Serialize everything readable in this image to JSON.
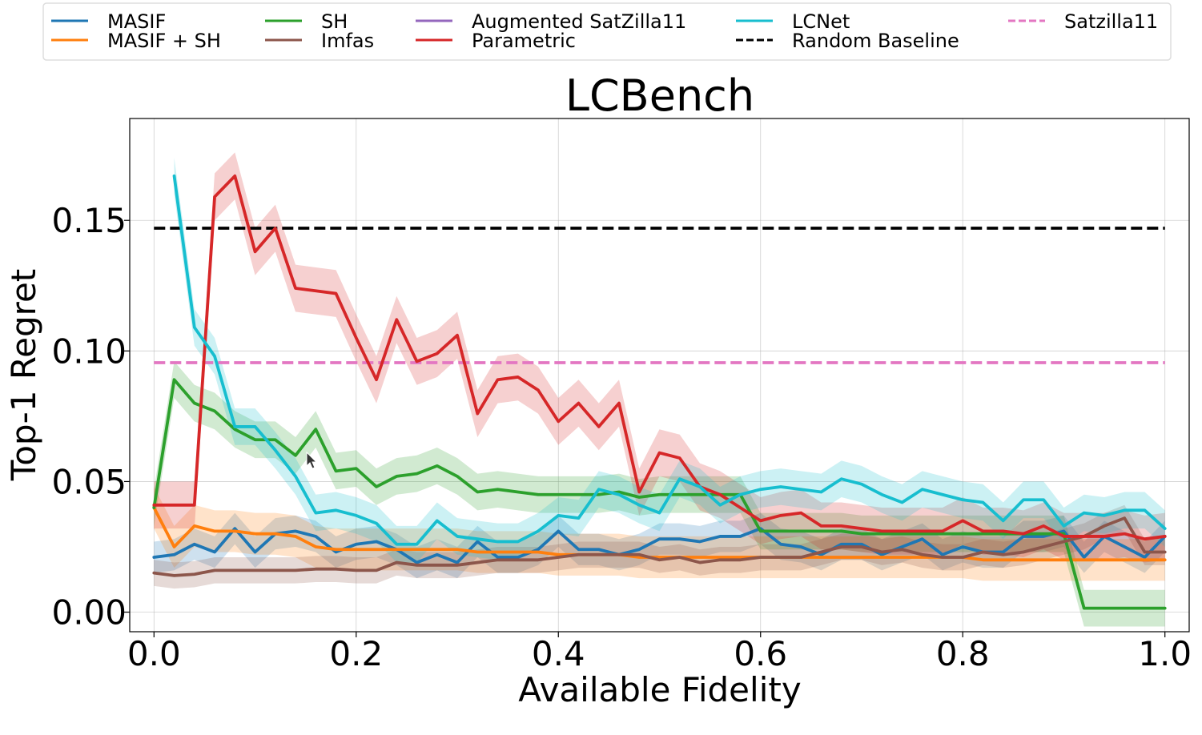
{
  "chart_data": {
    "type": "line",
    "title": "LCBench",
    "xlabel": "Available Fidelity",
    "ylabel": "Top-1 Regret",
    "xlim": [
      -0.024,
      1.024
    ],
    "ylim": [
      -0.0075,
      0.189
    ],
    "xticks": [
      0.0,
      0.2,
      0.4,
      0.6,
      0.8,
      1.0
    ],
    "xtick_labels": [
      "0.0",
      "0.2",
      "0.4",
      "0.6",
      "0.8",
      "1.0"
    ],
    "yticks": [
      0.0,
      0.05,
      0.1,
      0.15
    ],
    "ytick_labels": [
      "0.00",
      "0.05",
      "0.10",
      "0.15"
    ],
    "grid": true,
    "legend_position": "top",
    "series": [
      {
        "name": "MASIF",
        "color": "#1f77b4",
        "style": "solid",
        "band": 0.006,
        "x": [
          0.0,
          0.02,
          0.04,
          0.06,
          0.08,
          0.1,
          0.12,
          0.14,
          0.16,
          0.18,
          0.2,
          0.22,
          0.24,
          0.26,
          0.28,
          0.3,
          0.32,
          0.34,
          0.36,
          0.38,
          0.4,
          0.42,
          0.44,
          0.46,
          0.48,
          0.5,
          0.52,
          0.54,
          0.56,
          0.58,
          0.6,
          0.62,
          0.64,
          0.66,
          0.68,
          0.7,
          0.72,
          0.74,
          0.76,
          0.78,
          0.8,
          0.82,
          0.84,
          0.86,
          0.88,
          0.9,
          0.92,
          0.94,
          0.96,
          0.98,
          1.0
        ],
        "values": [
          0.021,
          0.022,
          0.026,
          0.023,
          0.032,
          0.023,
          0.03,
          0.031,
          0.029,
          0.023,
          0.026,
          0.027,
          0.024,
          0.019,
          0.022,
          0.019,
          0.027,
          0.021,
          0.021,
          0.024,
          0.031,
          0.024,
          0.024,
          0.022,
          0.024,
          0.028,
          0.028,
          0.027,
          0.029,
          0.029,
          0.032,
          0.026,
          0.025,
          0.022,
          0.026,
          0.026,
          0.022,
          0.025,
          0.028,
          0.022,
          0.025,
          0.023,
          0.023,
          0.029,
          0.029,
          0.031,
          0.021,
          0.029,
          0.025,
          0.021,
          0.029
        ]
      },
      {
        "name": "MASIF + SH",
        "color": "#ff7f0e",
        "style": "solid",
        "band": 0.008,
        "x": [
          0.0,
          0.02,
          0.04,
          0.06,
          0.08,
          0.1,
          0.12,
          0.14,
          0.16,
          0.18,
          0.2,
          0.22,
          0.24,
          0.26,
          0.28,
          0.3,
          0.32,
          0.34,
          0.36,
          0.38,
          0.4,
          0.42,
          0.44,
          0.46,
          0.48,
          0.5,
          0.52,
          0.54,
          0.56,
          0.58,
          0.6,
          0.62,
          0.64,
          0.66,
          0.68,
          0.7,
          0.72,
          0.74,
          0.76,
          0.78,
          0.8,
          0.82,
          0.84,
          0.86,
          0.88,
          0.9,
          0.92,
          0.94,
          0.96,
          0.98,
          1.0
        ],
        "values": [
          0.04,
          0.025,
          0.033,
          0.031,
          0.031,
          0.03,
          0.03,
          0.029,
          0.025,
          0.024,
          0.024,
          0.024,
          0.024,
          0.024,
          0.024,
          0.024,
          0.023,
          0.023,
          0.023,
          0.023,
          0.022,
          0.022,
          0.022,
          0.022,
          0.021,
          0.021,
          0.021,
          0.021,
          0.021,
          0.021,
          0.021,
          0.021,
          0.021,
          0.021,
          0.021,
          0.021,
          0.021,
          0.021,
          0.021,
          0.021,
          0.021,
          0.02,
          0.02,
          0.02,
          0.02,
          0.02,
          0.02,
          0.02,
          0.02,
          0.02,
          0.02
        ]
      },
      {
        "name": "SH",
        "color": "#2ca02c",
        "style": "solid",
        "band": 0.007,
        "x": [
          0.0,
          0.02,
          0.04,
          0.06,
          0.08,
          0.1,
          0.12,
          0.14,
          0.16,
          0.18,
          0.2,
          0.22,
          0.24,
          0.26,
          0.28,
          0.3,
          0.32,
          0.34,
          0.36,
          0.38,
          0.4,
          0.42,
          0.44,
          0.46,
          0.48,
          0.5,
          0.52,
          0.54,
          0.56,
          0.58,
          0.6,
          0.62,
          0.64,
          0.66,
          0.68,
          0.7,
          0.72,
          0.74,
          0.76,
          0.78,
          0.8,
          0.82,
          0.84,
          0.86,
          0.88,
          0.9,
          0.92,
          0.94,
          0.96,
          0.98,
          1.0
        ],
        "values": [
          0.04,
          0.089,
          0.08,
          0.077,
          0.07,
          0.066,
          0.066,
          0.06,
          0.07,
          0.054,
          0.055,
          0.048,
          0.052,
          0.053,
          0.056,
          0.052,
          0.046,
          0.047,
          0.046,
          0.045,
          0.045,
          0.045,
          0.045,
          0.046,
          0.044,
          0.045,
          0.045,
          0.045,
          0.045,
          0.045,
          0.031,
          0.031,
          0.031,
          0.031,
          0.031,
          0.03,
          0.03,
          0.03,
          0.03,
          0.03,
          0.03,
          0.03,
          0.03,
          0.03,
          0.03,
          0.03,
          0.0015,
          0.0015,
          0.0015,
          0.0015,
          0.0015
        ]
      },
      {
        "name": "Imfas",
        "color": "#8c564b",
        "style": "solid",
        "band": 0.005,
        "x": [
          0.0,
          0.02,
          0.04,
          0.06,
          0.08,
          0.1,
          0.12,
          0.14,
          0.16,
          0.18,
          0.2,
          0.22,
          0.24,
          0.26,
          0.28,
          0.3,
          0.32,
          0.34,
          0.36,
          0.38,
          0.4,
          0.42,
          0.44,
          0.46,
          0.48,
          0.5,
          0.52,
          0.54,
          0.56,
          0.58,
          0.6,
          0.62,
          0.64,
          0.66,
          0.68,
          0.7,
          0.72,
          0.74,
          0.76,
          0.78,
          0.8,
          0.82,
          0.84,
          0.86,
          0.88,
          0.9,
          0.92,
          0.94,
          0.96,
          0.98,
          1.0
        ],
        "values": [
          0.015,
          0.014,
          0.0145,
          0.016,
          0.016,
          0.016,
          0.016,
          0.016,
          0.0165,
          0.0165,
          0.016,
          0.016,
          0.019,
          0.018,
          0.018,
          0.018,
          0.019,
          0.02,
          0.02,
          0.02,
          0.021,
          0.022,
          0.022,
          0.022,
          0.022,
          0.02,
          0.021,
          0.019,
          0.02,
          0.02,
          0.021,
          0.021,
          0.021,
          0.023,
          0.025,
          0.025,
          0.023,
          0.024,
          0.022,
          0.021,
          0.021,
          0.023,
          0.022,
          0.023,
          0.025,
          0.027,
          0.029,
          0.033,
          0.036,
          0.023,
          0.023
        ]
      },
      {
        "name": "Augmented SatZilla11",
        "color": "#9467bd",
        "style": "solid",
        "band": 0,
        "x": [],
        "values": []
      },
      {
        "name": "Parametric",
        "color": "#d62728",
        "style": "solid",
        "band": 0.009,
        "x": [
          0.0,
          0.02,
          0.04,
          0.06,
          0.08,
          0.1,
          0.12,
          0.14,
          0.16,
          0.18,
          0.2,
          0.22,
          0.24,
          0.26,
          0.28,
          0.3,
          0.32,
          0.34,
          0.36,
          0.38,
          0.4,
          0.42,
          0.44,
          0.46,
          0.48,
          0.5,
          0.52,
          0.54,
          0.56,
          0.58,
          0.6,
          0.62,
          0.64,
          0.66,
          0.68,
          0.7,
          0.72,
          0.74,
          0.76,
          0.78,
          0.8,
          0.82,
          0.84,
          0.86,
          0.88,
          0.9,
          0.92,
          0.94,
          0.96,
          0.98,
          1.0
        ],
        "values": [
          0.041,
          0.041,
          0.041,
          0.159,
          0.167,
          0.138,
          0.147,
          0.124,
          0.123,
          0.122,
          0.105,
          0.089,
          0.112,
          0.096,
          0.099,
          0.106,
          0.076,
          0.089,
          0.09,
          0.085,
          0.073,
          0.08,
          0.071,
          0.08,
          0.046,
          0.061,
          0.059,
          0.048,
          0.045,
          0.04,
          0.035,
          0.037,
          0.038,
          0.033,
          0.033,
          0.032,
          0.031,
          0.031,
          0.031,
          0.031,
          0.035,
          0.031,
          0.031,
          0.03,
          0.033,
          0.029,
          0.029,
          0.029,
          0.03,
          0.028,
          0.029
        ]
      },
      {
        "name": "LCNet",
        "color": "#17becf",
        "style": "solid",
        "band": 0.007,
        "x": [
          0.02,
          0.04,
          0.06,
          0.08,
          0.1,
          0.12,
          0.14,
          0.16,
          0.18,
          0.2,
          0.22,
          0.24,
          0.26,
          0.28,
          0.3,
          0.32,
          0.34,
          0.36,
          0.38,
          0.4,
          0.42,
          0.44,
          0.46,
          0.48,
          0.5,
          0.52,
          0.54,
          0.56,
          0.58,
          0.6,
          0.62,
          0.64,
          0.66,
          0.68,
          0.7,
          0.72,
          0.74,
          0.76,
          0.78,
          0.8,
          0.82,
          0.84,
          0.86,
          0.88,
          0.9,
          0.92,
          0.94,
          0.96,
          0.98,
          1.0
        ],
        "values": [
          0.167,
          0.109,
          0.098,
          0.071,
          0.071,
          0.062,
          0.052,
          0.038,
          0.039,
          0.037,
          0.034,
          0.026,
          0.026,
          0.035,
          0.029,
          0.028,
          0.027,
          0.027,
          0.031,
          0.037,
          0.036,
          0.047,
          0.045,
          0.041,
          0.038,
          0.051,
          0.048,
          0.041,
          0.045,
          0.047,
          0.048,
          0.047,
          0.046,
          0.051,
          0.049,
          0.045,
          0.042,
          0.047,
          0.045,
          0.043,
          0.042,
          0.035,
          0.043,
          0.043,
          0.033,
          0.038,
          0.037,
          0.039,
          0.039,
          0.032
        ]
      }
    ],
    "reference_lines": [
      {
        "name": "Random Baseline",
        "color": "#000000",
        "style": "dashed",
        "y": 0.147,
        "x_start": 0.0,
        "x_end": 1.0
      },
      {
        "name": "Satzilla11",
        "color": "#e377c2",
        "style": "dashed",
        "y": 0.0955,
        "x_start": 0.0,
        "x_end": 1.0
      }
    ]
  }
}
